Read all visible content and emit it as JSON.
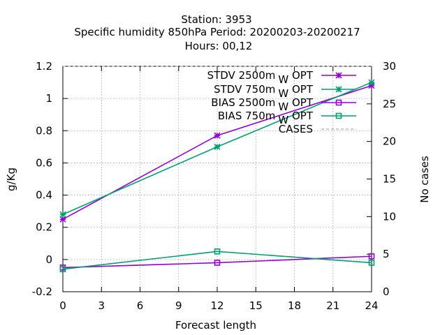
{
  "chart_data": {
    "type": "line",
    "title_lines": [
      "Station:      3953",
      "Specific humidity 850hPa   Period: 20200203-20200217",
      "Hours:  00,12"
    ],
    "xlabel": "Forecast length",
    "ylabel": "g/Kg",
    "y2label": "No cases",
    "xlim": [
      0,
      24
    ],
    "ylim": [
      -0.2,
      1.2
    ],
    "y2lim": [
      0,
      30
    ],
    "x_ticks": [
      "0",
      "3",
      "6",
      "9",
      "12",
      "15",
      "18",
      "21",
      "24"
    ],
    "y_ticks": [
      "-0.2",
      "0",
      "0.2",
      "0.4",
      "0.6",
      "0.8",
      "1",
      "1.2"
    ],
    "y2_ticks": [
      "0",
      "5",
      "10",
      "15",
      "20",
      "25",
      "30"
    ],
    "grid": true,
    "legend_position": "top-right",
    "x": [
      0,
      12,
      24
    ],
    "series": [
      {
        "name": "STDV 2500m",
        "sub": "W",
        "suffix": " OPT",
        "values": [
          0.25,
          0.77,
          1.08
        ],
        "color": "#9400d3",
        "marker": "x-star",
        "axis": "left"
      },
      {
        "name": "STDV 750m",
        "sub": "W",
        "suffix": " OPT",
        "values": [
          0.28,
          0.7,
          1.1
        ],
        "color": "#009e73",
        "marker": "x-star",
        "axis": "left"
      },
      {
        "name": "BIAS 2500m",
        "sub": "W",
        "suffix": " OPT",
        "values": [
          -0.05,
          -0.02,
          0.02
        ],
        "color": "#9400d3",
        "marker": "square",
        "axis": "left"
      },
      {
        "name": "BIAS 750m",
        "sub": "W",
        "suffix": " OPT",
        "values": [
          -0.06,
          0.05,
          -0.02
        ],
        "color": "#009e73",
        "marker": "square",
        "axis": "left"
      },
      {
        "name": "CASES",
        "sub": "",
        "suffix": "",
        "values": [
          30,
          30,
          30
        ],
        "color": "#999999",
        "marker": "none",
        "axis": "right",
        "dashed": true
      }
    ]
  }
}
